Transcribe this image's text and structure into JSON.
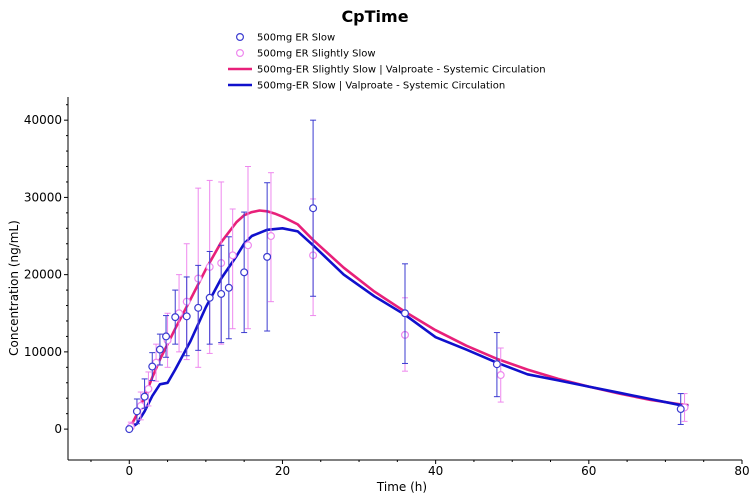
{
  "chart_data": {
    "type": "scatter",
    "title": "CpTime",
    "xlabel": "Time (h)",
    "ylabel": "Concentration (ng/mL)",
    "xlim": [
      -8,
      80
    ],
    "ylim": [
      -4000,
      43000
    ],
    "xticks": [
      0,
      20,
      40,
      60,
      80
    ],
    "xtick_labels": [
      "0",
      "20",
      "40",
      "60",
      "80"
    ],
    "yticks": [
      0,
      10000,
      20000,
      30000,
      40000
    ],
    "ytick_labels": [
      "0",
      "10000",
      "20000",
      "30000",
      "40000"
    ],
    "legend_position": "top-center",
    "grid": false,
    "series": [
      {
        "name": "500mg ER Slow",
        "kind": "markers",
        "color": "#3b3bd0",
        "points": [
          {
            "x": 0,
            "y": 0,
            "lo": 0,
            "hi": 0
          },
          {
            "x": 1,
            "y": 2300,
            "lo": 700,
            "hi": 3900
          },
          {
            "x": 2,
            "y": 4200,
            "lo": 2700,
            "hi": 6500
          },
          {
            "x": 3,
            "y": 8100,
            "lo": 6300,
            "hi": 9900
          },
          {
            "x": 4,
            "y": 10300,
            "lo": 8300,
            "hi": 12300
          },
          {
            "x": 4.8,
            "y": 12000,
            "lo": 9300,
            "hi": 14700
          },
          {
            "x": 6,
            "y": 14500,
            "lo": 11000,
            "hi": 18000
          },
          {
            "x": 7.5,
            "y": 14600,
            "lo": 9500,
            "hi": 19700
          },
          {
            "x": 9,
            "y": 15700,
            "lo": 10200,
            "hi": 21200
          },
          {
            "x": 10.5,
            "y": 17000,
            "lo": 11000,
            "hi": 23000
          },
          {
            "x": 12,
            "y": 17500,
            "lo": 11200,
            "hi": 23800
          },
          {
            "x": 13,
            "y": 18300,
            "lo": 11700,
            "hi": 24900
          },
          {
            "x": 15,
            "y": 20300,
            "lo": 12500,
            "hi": 28100
          },
          {
            "x": 18,
            "y": 22300,
            "lo": 12700,
            "hi": 31900
          },
          {
            "x": 24,
            "y": 28600,
            "lo": 17200,
            "hi": 40000
          },
          {
            "x": 36,
            "y": 15000,
            "lo": 8500,
            "hi": 21400
          },
          {
            "x": 48,
            "y": 8400,
            "lo": 4200,
            "hi": 12500
          },
          {
            "x": 72,
            "y": 2600,
            "lo": 600,
            "hi": 4600
          }
        ]
      },
      {
        "name": "500mg ER Slightly Slow",
        "kind": "markers",
        "color": "#ee88ee",
        "points": [
          {
            "x": 0.2,
            "y": 300,
            "lo": 0,
            "hi": 900
          },
          {
            "x": 1.5,
            "y": 3000,
            "lo": 1200,
            "hi": 4800
          },
          {
            "x": 2.5,
            "y": 5200,
            "lo": 3000,
            "hi": 7400
          },
          {
            "x": 3.5,
            "y": 8600,
            "lo": 6200,
            "hi": 11000
          },
          {
            "x": 5,
            "y": 11500,
            "lo": 8000,
            "hi": 15000
          },
          {
            "x": 6.5,
            "y": 15000,
            "lo": 10000,
            "hi": 20000
          },
          {
            "x": 7.5,
            "y": 16500,
            "lo": 9000,
            "hi": 24000
          },
          {
            "x": 9,
            "y": 19500,
            "lo": 8000,
            "hi": 31200
          },
          {
            "x": 10.5,
            "y": 21000,
            "lo": 9800,
            "hi": 32200
          },
          {
            "x": 12,
            "y": 21500,
            "lo": 11000,
            "hi": 32000
          },
          {
            "x": 13.5,
            "y": 22500,
            "lo": 13000,
            "hi": 28500
          },
          {
            "x": 15.5,
            "y": 23800,
            "lo": 13000,
            "hi": 34000
          },
          {
            "x": 18.5,
            "y": 25000,
            "lo": 16500,
            "hi": 33200
          },
          {
            "x": 24,
            "y": 22500,
            "lo": 14700,
            "hi": 29800
          },
          {
            "x": 36,
            "y": 12200,
            "lo": 7500,
            "hi": 17000
          },
          {
            "x": 48.5,
            "y": 7000,
            "lo": 3500,
            "hi": 10500
          },
          {
            "x": 72.5,
            "y": 2800,
            "lo": 1000,
            "hi": 4600
          }
        ]
      },
      {
        "name": "500mg-ER Slightly Slow | Valproate - Systemic Circulation",
        "kind": "line",
        "color": "#e8207a",
        "x": [
          0,
          1,
          2,
          3,
          4,
          5,
          6,
          8,
          10,
          12,
          14,
          15,
          16,
          17,
          18,
          19,
          20,
          22,
          24,
          28,
          32,
          36,
          40,
          44,
          48,
          52,
          56,
          60,
          64,
          68,
          72,
          73
        ],
        "y": [
          0,
          1900,
          4200,
          6700,
          9000,
          11000,
          13000,
          16800,
          20700,
          24200,
          26800,
          27700,
          28100,
          28300,
          28200,
          27900,
          27500,
          26500,
          24500,
          20900,
          17800,
          15200,
          12800,
          10800,
          9100,
          7700,
          6500,
          5500,
          4600,
          3800,
          3200,
          3100
        ]
      },
      {
        "name": "500mg-ER Slow | Valproate - Systemic Circulation",
        "kind": "line",
        "color": "#1010cc",
        "x": [
          0,
          1,
          2,
          3,
          4,
          5,
          6,
          8,
          10,
          12,
          14,
          15,
          16,
          18,
          20,
          22,
          24,
          28,
          32,
          36,
          40,
          44,
          48,
          52,
          56,
          60,
          64,
          68,
          72,
          73
        ],
        "y": [
          0,
          700,
          2300,
          4300,
          5800,
          6000,
          7700,
          11400,
          15800,
          19500,
          22400,
          24000,
          25000,
          25800,
          26000,
          25600,
          23800,
          20000,
          17200,
          14800,
          11900,
          10300,
          8600,
          7100,
          6300,
          5500,
          4700,
          3900,
          3100,
          3000
        ]
      }
    ]
  }
}
